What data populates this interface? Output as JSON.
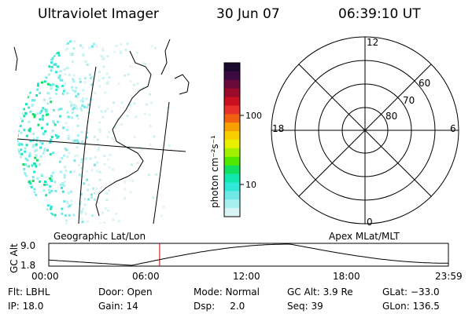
{
  "header": {
    "instrument": "Ultraviolet Imager",
    "date": "30 Jun 07",
    "time": "06:39:10 UT"
  },
  "left_panel": {
    "label": "Geographic Lat/Lon"
  },
  "colorbar": {
    "unit": "photon cm⁻²s⁻¹",
    "tick_labels": [
      "100",
      "10"
    ],
    "colors": [
      "#1a0a2e",
      "#3a0a40",
      "#6a0a3a",
      "#9a0a2a",
      "#c8101e",
      "#e8302a",
      "#f06010",
      "#f8a000",
      "#f8d000",
      "#e8f000",
      "#a0f000",
      "#50e800",
      "#10e060",
      "#10e8b0",
      "#30e8d8",
      "#70e8e8",
      "#a8f0f0",
      "#d8f4f4"
    ]
  },
  "polar_plot": {
    "label": "Apex MLat/MLT",
    "mlt_labels": {
      "top": "12",
      "left": "18",
      "right": "6",
      "bottom": "0"
    },
    "mlat_labels": [
      "60",
      "70",
      "80"
    ]
  },
  "timeline": {
    "ylabel": "GC Alt",
    "y_ticks": [
      "9.0",
      "1.8"
    ],
    "x_ticks": [
      "00:00",
      "06:00",
      "12:00",
      "18:00",
      "23:59"
    ],
    "current_time_hours": 6.65
  },
  "info": {
    "flt": "Flt: LBHL",
    "ip": "IP: 18.0",
    "door": "Door: Open",
    "gain": "Gain: 14",
    "mode": "Mode: Normal",
    "dsp": "Dsp:     2.0",
    "gcalt": "GC Alt: 3.9 Re",
    "seq": "Seq: 39",
    "glat": "GLat: −33.0",
    "glon": "GLon: 136.5"
  }
}
